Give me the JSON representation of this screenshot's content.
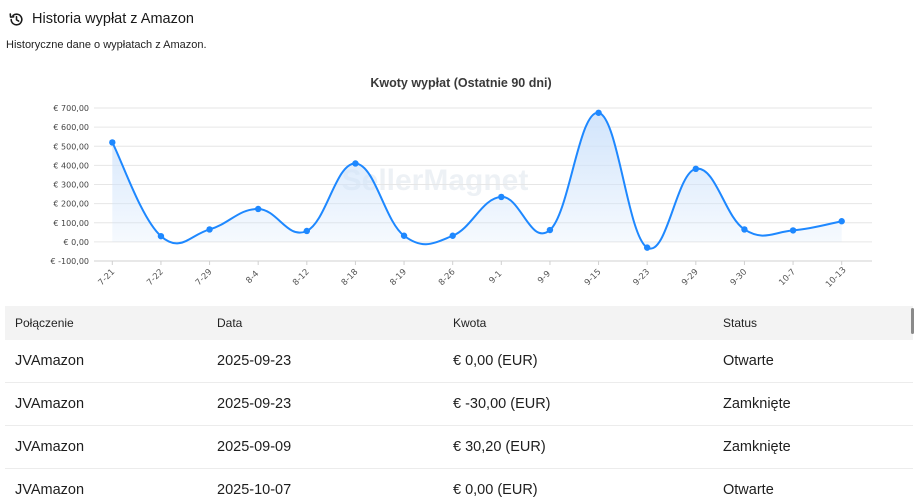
{
  "header": {
    "title": "Historia wypłat z Amazon",
    "subtitle": "Historyczne dane o wypłatach z Amazon.",
    "icon": "history-icon"
  },
  "watermark": "SellerMagnet",
  "chart_data": {
    "type": "area",
    "title": "Kwoty wypłat (Ostatnie 90 dni)",
    "xlabel": "",
    "ylabel": "",
    "categories": [
      "7-21",
      "7-22",
      "7-29",
      "8-4",
      "8-12",
      "8-18",
      "8-19",
      "8-26",
      "9-1",
      "9-9",
      "9-15",
      "9-23",
      "9-29",
      "9-30",
      "10-7",
      "10-13"
    ],
    "series": [
      {
        "values": [
          520,
          30,
          65,
          172,
          57,
          410,
          32,
          32,
          235,
          62,
          675,
          -30,
          382,
          65,
          60,
          108
        ]
      }
    ],
    "ylim": [
      -100,
      700
    ],
    "yticks": [
      "€ -100,00",
      "€ 0,00",
      "€ 100,00",
      "€ 200,00",
      "€ 300,00",
      "€ 400,00",
      "€ 500,00",
      "€ 600,00",
      "€ 700,00"
    ],
    "grid": true,
    "color": "#1e88ff",
    "fill_color": "#cfe3fb"
  },
  "table": {
    "headers": [
      "Połączenie",
      "Data",
      "Kwota",
      "Status"
    ],
    "rows": [
      [
        "JVAmazon",
        "2025-09-23",
        "€ 0,00 (EUR)",
        "Otwarte"
      ],
      [
        "JVAmazon",
        "2025-09-23",
        "€ -30,00 (EUR)",
        "Zamknięte"
      ],
      [
        "JVAmazon",
        "2025-09-09",
        "€ 30,20 (EUR)",
        "Zamknięte"
      ],
      [
        "JVAmazon",
        "2025-10-07",
        "€ 0,00 (EUR)",
        "Otwarte"
      ]
    ]
  }
}
